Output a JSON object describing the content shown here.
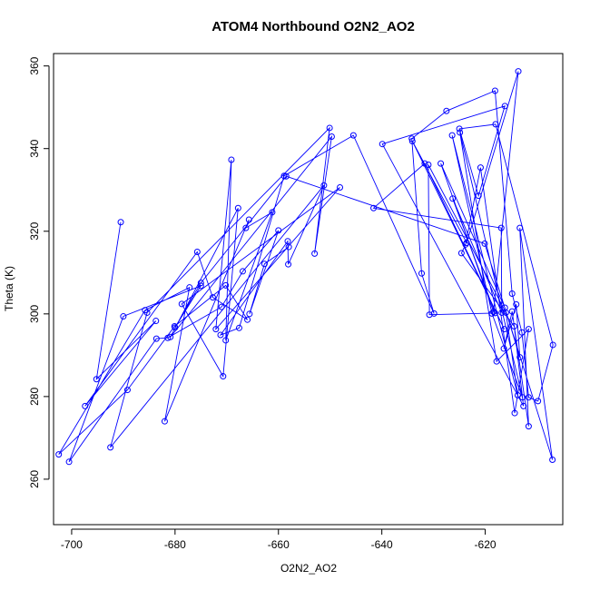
{
  "chart_data": {
    "type": "line",
    "title": "ATOM4 Northbound O2N2_AO2",
    "xlabel": "O2N2_AO2",
    "ylabel": "Theta (K)",
    "xlim": [
      -703.5,
      -605.0
    ],
    "ylim": [
      249.0,
      363.0
    ],
    "xticks": [
      -700,
      -680,
      -660,
      -640,
      -620
    ],
    "yticks": [
      260,
      280,
      300,
      320,
      340,
      360
    ],
    "grid": false,
    "series": [
      {
        "color": "#0000ff",
        "marker": "open-circle",
        "points": [
          [
            -690.5,
            322.2
          ],
          [
            -695.2,
            284.2
          ],
          [
            -683.7,
            298.3
          ],
          [
            -697.4,
            277.7
          ],
          [
            -675.7,
            315.0
          ],
          [
            -672.7,
            304.0
          ],
          [
            -666.0,
            298.6
          ],
          [
            -670.2,
            306.9
          ],
          [
            -680.1,
            297.0
          ],
          [
            -689.2,
            281.6
          ],
          [
            -702.5,
            266.0
          ],
          [
            -685.8,
            300.9
          ],
          [
            -677.2,
            306.4
          ],
          [
            -682.0,
            274.0
          ],
          [
            -665.7,
            322.8
          ],
          [
            -666.3,
            320.8
          ],
          [
            -661.2,
            324.6
          ],
          [
            -670.2,
            293.6
          ],
          [
            -669.1,
            337.3
          ],
          [
            -672.1,
            296.3
          ],
          [
            -648.1,
            330.6
          ],
          [
            -678.7,
            302.4
          ],
          [
            -670.7,
            284.9
          ],
          [
            -667.8,
            325.6
          ],
          [
            -680.9,
            294.4
          ],
          [
            -649.7,
            342.9
          ],
          [
            -653.0,
            314.6
          ],
          [
            -650.1,
            345.0
          ],
          [
            -685.4,
            300.3
          ],
          [
            -692.5,
            267.7
          ],
          [
            -651.2,
            331.1
          ],
          [
            -658.1,
            312.0
          ],
          [
            -658.2,
            317.6
          ],
          [
            -671.2,
            294.9
          ],
          [
            -667.6,
            296.6
          ],
          [
            -658.9,
            333.4
          ],
          [
            -645.5,
            343.2
          ],
          [
            -629.9,
            300.1
          ],
          [
            -632.3,
            309.8
          ],
          [
            -634.2,
            342.4
          ],
          [
            -627.5,
            349.1
          ],
          [
            -618.1,
            354.0
          ],
          [
            -614.8,
            304.9
          ],
          [
            -612.9,
            295.5
          ],
          [
            -611.6,
            279.8
          ],
          [
            -609.8,
            278.9
          ],
          [
            -606.9,
            292.5
          ],
          [
            -618.0,
            345.9
          ],
          [
            -625.0,
            344.8
          ],
          [
            -621.3,
            328.6
          ],
          [
            -616.2,
            350.3
          ],
          [
            -639.9,
            341.1
          ],
          [
            -612.6,
            277.7
          ],
          [
            -614.4,
            297.0
          ],
          [
            -624.6,
            314.7
          ],
          [
            -623.8,
            316.8
          ],
          [
            -620.9,
            335.4
          ],
          [
            -614.3,
            276.0
          ],
          [
            -611.6,
            296.3
          ],
          [
            -617.8,
            288.5
          ],
          [
            -624.9,
            343.9
          ],
          [
            -612.8,
            279.8
          ],
          [
            -618.7,
            300.1
          ],
          [
            -626.4,
            343.2
          ],
          [
            -613.7,
            280.3
          ],
          [
            -616.0,
            300.3
          ],
          [
            -631.0,
            336.1
          ],
          [
            -630.8,
            299.8
          ],
          [
            -618.1,
            300.2
          ],
          [
            -626.3,
            327.9
          ],
          [
            -616.8,
            300.3
          ],
          [
            -616.9,
            320.8
          ],
          [
            -641.6,
            325.6
          ],
          [
            -631.7,
            336.4
          ],
          [
            -616.3,
            296.3
          ],
          [
            -634.1,
            341.8
          ],
          [
            -623.6,
            317.2
          ],
          [
            -613.6,
            358.7
          ],
          [
            -618.4,
            300.5
          ],
          [
            -628.6,
            336.4
          ],
          [
            -616.2,
            301.5
          ],
          [
            -613.3,
            289.5
          ],
          [
            -614.0,
            302.3
          ],
          [
            -616.4,
            291.6
          ],
          [
            -614.8,
            300.6
          ],
          [
            -611.6,
            272.8
          ],
          [
            -613.3,
            320.8
          ],
          [
            -607.0,
            264.7
          ],
          [
            -620.1,
            317.0
          ],
          [
            -658.5,
            333.3
          ],
          [
            -675.0,
            307.5
          ],
          [
            -680.0,
            296.7
          ],
          [
            -675.0,
            306.8
          ],
          [
            -690.0,
            299.4
          ],
          [
            -700.5,
            264.2
          ],
          [
            -683.6,
            294.0
          ],
          [
            -681.4,
            294.2
          ],
          [
            -671.0,
            301.7
          ],
          [
            -666.9,
            310.3
          ],
          [
            -660.0,
            320.2
          ],
          [
            -665.6,
            300.0
          ],
          [
            -662.7,
            312.1
          ],
          [
            -658.0,
            316.2
          ]
        ]
      }
    ]
  }
}
